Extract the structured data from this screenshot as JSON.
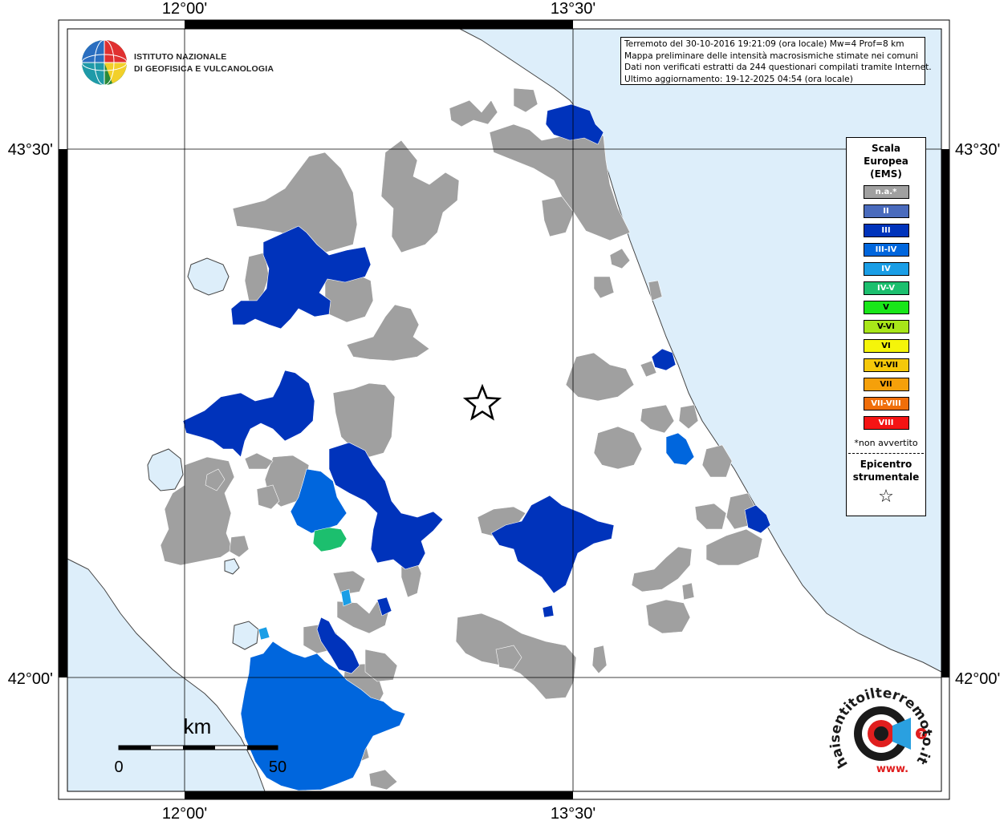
{
  "grid": {
    "lon_top": [
      "12°00'",
      "13°30'"
    ],
    "lon_bottom": [
      "12°00'",
      "13°30'"
    ],
    "lat_left": [
      "43°30'",
      "42°00'"
    ],
    "lat_right": [
      "43°30'",
      "42°00'"
    ]
  },
  "logo": {
    "line1": "ISTITUTO NAZIONALE",
    "line2": "DI GEOFISICA E VULCANOLOGIA"
  },
  "info": {
    "line1": "Terremoto del 30-10-2016 19:21:09 (ora locale) Mw=4 Prof=8 km",
    "line2": "Mappa preliminare delle intensità macrosismiche stimate nei comuni",
    "line3": "Dati non verificati estratti da 244 questionari compilati tramite Internet.",
    "line4": "Ultimo aggiornamento: 19-12-2025 04:54 (ora locale)"
  },
  "legend": {
    "title_line1": "Scala",
    "title_line2": "Europea",
    "title_line3": "(EMS)",
    "items": [
      {
        "label": "n.a.*",
        "color": "#a0a0a0"
      },
      {
        "label": "II",
        "color": "#4a6bbd"
      },
      {
        "label": "III",
        "color": "#0033bb"
      },
      {
        "label": "III-IV",
        "color": "#0066dd"
      },
      {
        "label": "IV",
        "color": "#1a9ee6"
      },
      {
        "label": "IV-V",
        "color": "#1cbf6e"
      },
      {
        "label": "V",
        "color": "#19e619"
      },
      {
        "label": "V-VI",
        "color": "#a8e619"
      },
      {
        "label": "VI",
        "color": "#f5f50a"
      },
      {
        "label": "VI-VII",
        "color": "#f5c80a"
      },
      {
        "label": "VII",
        "color": "#f5a00a"
      },
      {
        "label": "VII-VIII",
        "color": "#f06e0a"
      },
      {
        "label": "VIII",
        "color": "#f51414"
      }
    ],
    "note": "*non avvertito",
    "epicenter_line1": "Epicentro",
    "epicenter_line2": "strumentale",
    "epicenter_symbol": "☆"
  },
  "scalebar": {
    "unit": "km",
    "label_start": "0",
    "label_end": "50"
  },
  "colors": {
    "sea": "#ddeefa",
    "land": "#ffffff",
    "not_felt": "#a0a0a0",
    "intensity_III": "#0033bb",
    "intensity_III_IV": "#0066dd",
    "intensity_IV": "#1a9ee6",
    "intensity_IV_V": "#1cbf6e"
  },
  "badge": {
    "text": "haisentitoilterremoto.it",
    "www": "www."
  }
}
